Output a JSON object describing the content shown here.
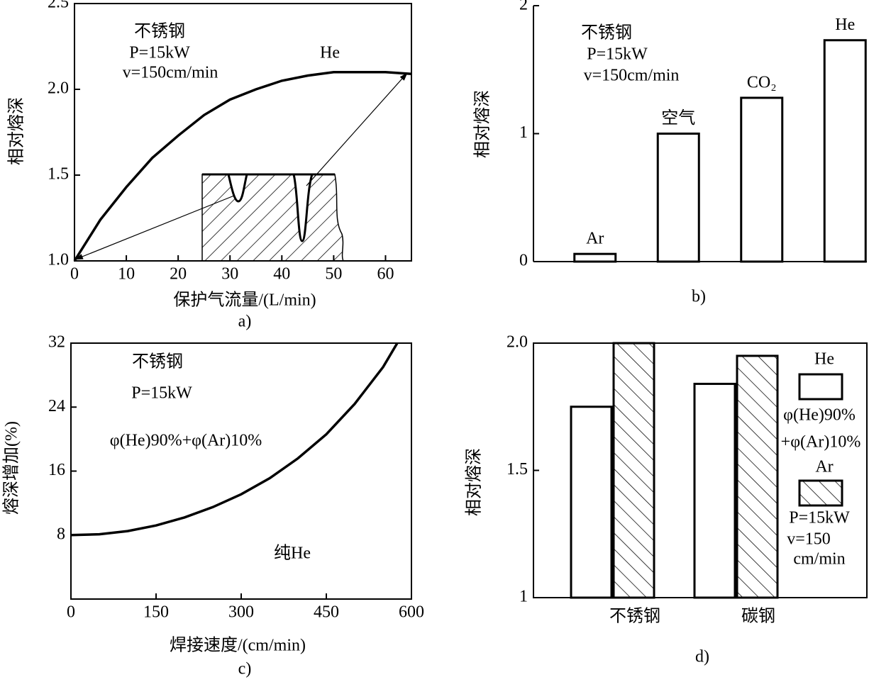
{
  "chart_data": [
    {
      "type": "line",
      "panel_label": "a)",
      "xlabel": "保护气流量/(L/min)",
      "ylabel": "相对熔深",
      "x": [
        0,
        5,
        10,
        15,
        20,
        25,
        30,
        35,
        40,
        45,
        50,
        55,
        60,
        65
      ],
      "values": [
        1.0,
        1.24,
        1.43,
        1.6,
        1.73,
        1.85,
        1.94,
        2.0,
        2.05,
        2.08,
        2.1,
        2.1,
        2.1,
        2.09
      ],
      "color": "#000000",
      "xlim": [
        0,
        65
      ],
      "xticks": [
        0,
        10,
        20,
        30,
        40,
        50,
        60
      ],
      "ylim": [
        1.0,
        2.5
      ],
      "yticks": [
        {
          "value": 1.0,
          "label": "1.0"
        },
        1.5,
        {
          "value": 2.0,
          "label": "2.0"
        },
        2.5
      ],
      "annotations": [
        "不锈钢",
        "P=15kW",
        "v=150cm/min",
        "He"
      ]
    },
    {
      "type": "bar",
      "panel_label": "b)",
      "ylabel": "相对熔深",
      "categories": [
        "Ar",
        "空气",
        "CO₂",
        "He"
      ],
      "values": [
        0.06,
        1.0,
        1.28,
        1.73
      ],
      "color": "#ffffff",
      "ylim": [
        0,
        2
      ],
      "yticks": [
        0,
        1,
        2
      ],
      "annotations": [
        "不锈钢",
        "P=15kW",
        "v=150cm/min"
      ]
    },
    {
      "type": "line",
      "panel_label": "c)",
      "xlabel": "焊接速度/(cm/min)",
      "ylabel": "熔深增加(%)",
      "x": [
        0,
        50,
        100,
        150,
        200,
        250,
        300,
        350,
        400,
        450,
        500,
        550,
        575
      ],
      "values": [
        8,
        8.1,
        8.5,
        9.2,
        10.2,
        11.5,
        13.1,
        15.1,
        17.6,
        20.6,
        24.4,
        29,
        32
      ],
      "color": "#000000",
      "xlim": [
        0,
        600
      ],
      "xticks": [
        0,
        150,
        300,
        450,
        600
      ],
      "ylim": [
        0,
        32
      ],
      "yticks": [
        8,
        16,
        24,
        32
      ],
      "annotations": [
        "不锈钢",
        "P=15kW",
        "φ(He)90%+φ(Ar)10%",
        "纯He"
      ]
    },
    {
      "type": "bar",
      "panel_label": "d)",
      "ylabel": "相对熔深",
      "categories": [
        "不锈钢",
        "碳钢"
      ],
      "series": [
        {
          "name": "He",
          "color": "#ffffff",
          "hatch": false,
          "values": [
            1.75,
            1.84
          ]
        },
        {
          "name": "Ar",
          "color": "#ffffff",
          "hatch": true,
          "values": [
            2.0,
            1.95
          ]
        }
      ],
      "ylim": [
        1,
        2.0
      ],
      "yticks": [
        1,
        1.5,
        {
          "value": 2.0,
          "label": "2.0"
        }
      ],
      "annotations": [
        "φ(He)90%",
        "+φ(Ar)10%",
        "P=15kW",
        "v=150",
        "cm/min"
      ]
    }
  ]
}
